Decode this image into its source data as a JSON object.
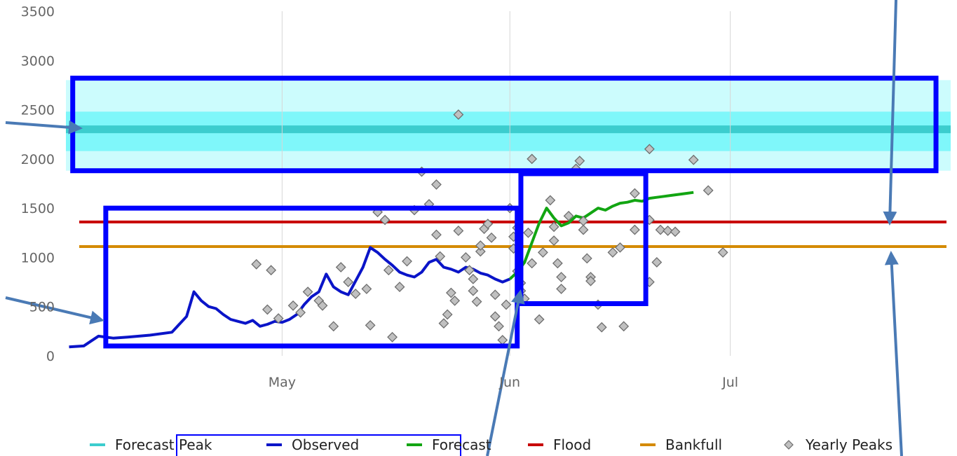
{
  "chart_data": {
    "type": "line",
    "title": "",
    "xlabel": "",
    "ylabel": "",
    "ylim": [
      0,
      3500
    ],
    "y_ticks": [
      0,
      500,
      1000,
      1500,
      2000,
      2500,
      3000,
      3500
    ],
    "x_ticks": [
      {
        "day": 0,
        "label": "May"
      },
      {
        "day": 31,
        "label": "Jun"
      },
      {
        "day": 61,
        "label": "Jul"
      }
    ],
    "x_domain_days": [
      -30,
      91
    ],
    "grid": "vertical",
    "legend": "bottom",
    "colors": {
      "forecast_peak_outer": "#ccfcfd",
      "forecast_peak_mid": "#7ff7fa",
      "forecast_peak_line": "#3ccdce",
      "observed": "#0a14c8",
      "forecast": "#12a512",
      "flood": "#c80000",
      "bankfull": "#d48a00",
      "yearly_peaks_fill": "#c0c0c0",
      "yearly_peaks_stroke": "#6e6e6e",
      "annotation_box": "#0000ff",
      "annotation_arrow": "#4a7ab5"
    },
    "series": [
      {
        "name": "Forecast Peak",
        "kind": "band",
        "value": 2300,
        "band_outer": [
          1880,
          2800
        ],
        "band_inner": [
          2080,
          2480
        ]
      },
      {
        "name": "Observed",
        "kind": "line",
        "x": [
          -29,
          -27,
          -25,
          -23,
          -21,
          -18,
          -15,
          -13,
          -12,
          -11,
          -10,
          -9,
          -8,
          -7,
          -6,
          -5,
          -4,
          -3,
          -2,
          -1,
          0,
          1,
          2,
          3,
          4,
          5,
          6,
          7,
          8,
          9,
          10,
          11,
          12,
          13,
          14,
          15,
          16,
          17,
          18,
          19,
          20,
          21,
          22,
          23,
          24,
          25,
          26,
          27,
          28,
          29,
          30,
          31
        ],
        "y": [
          90,
          100,
          200,
          180,
          190,
          210,
          240,
          400,
          650,
          560,
          500,
          480,
          420,
          370,
          350,
          330,
          360,
          300,
          320,
          350,
          340,
          370,
          420,
          520,
          600,
          650,
          830,
          700,
          650,
          620,
          760,
          900,
          1100,
          1050,
          980,
          920,
          850,
          820,
          800,
          850,
          950,
          980,
          900,
          880,
          850,
          900,
          880,
          840,
          820,
          780,
          750,
          780
        ]
      },
      {
        "name": "Forecast",
        "kind": "line",
        "x": [
          31,
          32,
          33,
          34,
          35,
          36,
          37,
          38,
          39,
          40,
          41,
          42,
          43,
          44,
          45,
          46,
          47,
          48,
          49,
          50,
          51,
          52,
          53,
          54,
          55,
          56
        ],
        "y": [
          780,
          850,
          950,
          1150,
          1350,
          1500,
          1400,
          1320,
          1350,
          1420,
          1400,
          1450,
          1500,
          1480,
          1520,
          1550,
          1560,
          1580,
          1570,
          1600,
          1610,
          1620,
          1630,
          1640,
          1650,
          1660
        ]
      },
      {
        "name": "Flood",
        "kind": "hline",
        "value": 1360
      },
      {
        "name": "Bankfull",
        "kind": "hline",
        "value": 1110
      },
      {
        "name": "Yearly Peaks",
        "kind": "scatter",
        "points": [
          [
            -3.5,
            930
          ],
          [
            -1.5,
            870
          ],
          [
            -2,
            470
          ],
          [
            -0.5,
            380
          ],
          [
            1.5,
            510
          ],
          [
            2.5,
            440
          ],
          [
            3.5,
            650
          ],
          [
            5,
            560
          ],
          [
            5.5,
            510
          ],
          [
            7,
            300
          ],
          [
            8,
            900
          ],
          [
            9,
            750
          ],
          [
            10,
            630
          ],
          [
            11.5,
            680
          ],
          [
            12,
            310
          ],
          [
            13,
            1460
          ],
          [
            14,
            1380
          ],
          [
            14.5,
            870
          ],
          [
            15,
            190
          ],
          [
            16,
            700
          ],
          [
            17,
            960
          ],
          [
            18,
            1480
          ],
          [
            19,
            1870
          ],
          [
            20,
            1540
          ],
          [
            21,
            1740
          ],
          [
            21,
            1230
          ],
          [
            21.5,
            1010
          ],
          [
            22,
            330
          ],
          [
            22.5,
            420
          ],
          [
            23,
            640
          ],
          [
            23.5,
            560
          ],
          [
            24,
            2450
          ],
          [
            24,
            1270
          ],
          [
            25,
            1000
          ],
          [
            25.5,
            870
          ],
          [
            26,
            780
          ],
          [
            26,
            660
          ],
          [
            26.5,
            550
          ],
          [
            27,
            1060
          ],
          [
            27,
            1120
          ],
          [
            27.5,
            1290
          ],
          [
            28,
            1340
          ],
          [
            28.5,
            1200
          ],
          [
            29,
            620
          ],
          [
            29,
            400
          ],
          [
            29.5,
            300
          ],
          [
            30,
            160
          ],
          [
            30.5,
            520
          ],
          [
            31,
            1500
          ],
          [
            31.5,
            1210
          ],
          [
            31.5,
            1090
          ],
          [
            32,
            1300
          ],
          [
            32,
            860
          ],
          [
            32.5,
            740
          ],
          [
            32.5,
            660
          ],
          [
            33,
            580
          ],
          [
            33.5,
            1250
          ],
          [
            34,
            2000
          ],
          [
            34,
            940
          ],
          [
            35,
            370
          ],
          [
            35.5,
            1050
          ],
          [
            36.5,
            1580
          ],
          [
            37,
            1310
          ],
          [
            37,
            1170
          ],
          [
            37.5,
            940
          ],
          [
            38,
            800
          ],
          [
            38,
            680
          ],
          [
            39,
            1420
          ],
          [
            40,
            1900
          ],
          [
            40.5,
            1980
          ],
          [
            41,
            1370
          ],
          [
            41,
            1280
          ],
          [
            41.5,
            990
          ],
          [
            42,
            800
          ],
          [
            42,
            760
          ],
          [
            43,
            520
          ],
          [
            43.5,
            290
          ],
          [
            45,
            1050
          ],
          [
            46,
            1100
          ],
          [
            46.5,
            300
          ],
          [
            48,
            1650
          ],
          [
            48,
            1280
          ],
          [
            50,
            2100
          ],
          [
            50,
            1380
          ],
          [
            50,
            750
          ],
          [
            51,
            950
          ],
          [
            51.5,
            1280
          ],
          [
            52.5,
            1270
          ],
          [
            53.5,
            1260
          ],
          [
            56,
            1990
          ],
          [
            58,
            1680
          ],
          [
            60,
            1050
          ]
        ]
      }
    ],
    "annotations": {
      "boxes": [
        {
          "label": "forecast-peak-box",
          "x": [
            -28.5,
            89
          ],
          "y": [
            1880,
            2820
          ]
        },
        {
          "label": "observed-box",
          "x": [
            -24,
            32
          ],
          "y": [
            100,
            1500
          ]
        },
        {
          "label": "forecast-box",
          "x": [
            32.5,
            49.5
          ],
          "y": [
            530,
            1850
          ]
        }
      ]
    }
  },
  "legend": {
    "items": [
      {
        "label": "Forecast Peak",
        "symbol": "line",
        "color": "#3ccdce"
      },
      {
        "label": "Observed",
        "symbol": "line",
        "color": "#0a14c8"
      },
      {
        "label": "Forecast",
        "symbol": "line",
        "color": "#12a512"
      },
      {
        "label": "Flood",
        "symbol": "line",
        "color": "#c80000"
      },
      {
        "label": "Bankfull",
        "symbol": "line",
        "color": "#d48a00"
      },
      {
        "label": "Yearly Peaks",
        "symbol": "diamond",
        "color": "#c0c0c0"
      }
    ]
  }
}
